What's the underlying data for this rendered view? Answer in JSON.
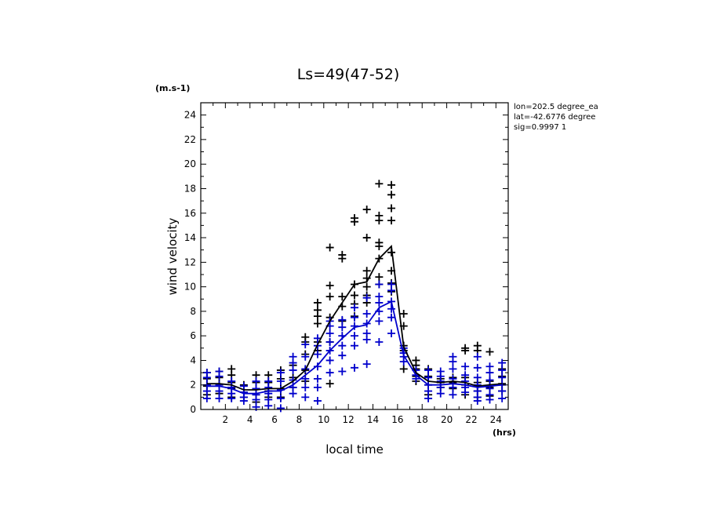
{
  "chart_data": {
    "type": "scatter",
    "title": "Ls=49(47-52)",
    "ylabel": "wind velocity",
    "xlabel": "local time",
    "y_unit": "(m.s-1)",
    "x_unit": "(hrs)",
    "xlim": [
      0,
      25
    ],
    "ylim": [
      0,
      25
    ],
    "x_ticks": [
      2,
      4,
      6,
      8,
      10,
      12,
      14,
      16,
      18,
      20,
      22,
      24
    ],
    "y_ticks": [
      0,
      2,
      4,
      6,
      8,
      10,
      12,
      14,
      16,
      18,
      20,
      22,
      24
    ],
    "grid": false,
    "annotations": [
      "lon=202.5 degree_ea",
      "lat=-42.6776 degree",
      "sig=0.9997 1"
    ],
    "colors": {
      "series_black": "#000000",
      "series_blue": "#0000cc"
    },
    "series": [
      {
        "color": "black",
        "line": [
          [
            0.5,
            2.1
          ],
          [
            1.5,
            2.1
          ],
          [
            2.5,
            2.0
          ],
          [
            3.5,
            1.6
          ],
          [
            4.5,
            1.6
          ],
          [
            5.5,
            1.7
          ],
          [
            6.5,
            1.7
          ],
          [
            7.5,
            2.3
          ],
          [
            8.5,
            3.2
          ],
          [
            9.5,
            5.3
          ],
          [
            10.5,
            7.2
          ],
          [
            11.5,
            8.7
          ],
          [
            12.5,
            10.2
          ],
          [
            13.5,
            10.4
          ],
          [
            14.5,
            12.3
          ],
          [
            15.5,
            13.3
          ],
          [
            16.5,
            5.1
          ],
          [
            17.5,
            3.0
          ],
          [
            18.5,
            2.3
          ],
          [
            19.5,
            2.2
          ],
          [
            20.5,
            2.3
          ],
          [
            21.5,
            2.2
          ],
          [
            22.5,
            1.9
          ],
          [
            23.5,
            2.0
          ],
          [
            24.5,
            2.1
          ]
        ],
        "points": [
          [
            0.5,
            1.2
          ],
          [
            0.5,
            1.9
          ],
          [
            0.5,
            2.5
          ],
          [
            0.5,
            3.0
          ],
          [
            1.5,
            1.3
          ],
          [
            1.5,
            2.0
          ],
          [
            1.5,
            2.6
          ],
          [
            1.5,
            3.1
          ],
          [
            2.5,
            1.0
          ],
          [
            2.5,
            1.7
          ],
          [
            2.5,
            2.2
          ],
          [
            2.5,
            2.8
          ],
          [
            2.5,
            3.3
          ],
          [
            3.5,
            1.0
          ],
          [
            3.5,
            1.4
          ],
          [
            3.5,
            2.0
          ],
          [
            4.5,
            0.6
          ],
          [
            4.5,
            1.2
          ],
          [
            4.5,
            1.7
          ],
          [
            4.5,
            2.2
          ],
          [
            4.5,
            2.8
          ],
          [
            5.5,
            1.0
          ],
          [
            5.5,
            1.5
          ],
          [
            5.5,
            2.2
          ],
          [
            5.5,
            2.8
          ],
          [
            6.5,
            1.0
          ],
          [
            6.5,
            1.7
          ],
          [
            6.5,
            2.5
          ],
          [
            6.5,
            3.2
          ],
          [
            7.5,
            1.8
          ],
          [
            7.5,
            2.6
          ],
          [
            7.5,
            3.6
          ],
          [
            8.5,
            2.3
          ],
          [
            8.5,
            3.2
          ],
          [
            8.5,
            4.5
          ],
          [
            8.5,
            5.5
          ],
          [
            8.5,
            5.9
          ],
          [
            9.5,
            4.8
          ],
          [
            9.5,
            5.5
          ],
          [
            9.5,
            7.0
          ],
          [
            9.5,
            7.6
          ],
          [
            9.5,
            8.1
          ],
          [
            9.5,
            8.7
          ],
          [
            10.5,
            2.1
          ],
          [
            10.5,
            5.5
          ],
          [
            10.5,
            7.5
          ],
          [
            10.5,
            9.2
          ],
          [
            10.5,
            10.1
          ],
          [
            10.5,
            13.2
          ],
          [
            11.5,
            7.2
          ],
          [
            11.5,
            8.4
          ],
          [
            11.5,
            9.2
          ],
          [
            11.5,
            12.3
          ],
          [
            11.5,
            12.6
          ],
          [
            12.5,
            7.6
          ],
          [
            12.5,
            8.6
          ],
          [
            12.5,
            9.3
          ],
          [
            12.5,
            10.2
          ],
          [
            12.5,
            15.3
          ],
          [
            12.5,
            15.6
          ],
          [
            13.5,
            8.7
          ],
          [
            13.5,
            9.3
          ],
          [
            13.5,
            10.0
          ],
          [
            13.5,
            10.7
          ],
          [
            13.5,
            11.3
          ],
          [
            13.5,
            14.0
          ],
          [
            13.5,
            16.3
          ],
          [
            14.5,
            10.2
          ],
          [
            14.5,
            10.8
          ],
          [
            14.5,
            12.3
          ],
          [
            14.5,
            13.3
          ],
          [
            14.5,
            13.6
          ],
          [
            14.5,
            15.4
          ],
          [
            14.5,
            15.8
          ],
          [
            14.5,
            18.4
          ],
          [
            15.5,
            9.6
          ],
          [
            15.5,
            10.3
          ],
          [
            15.5,
            11.3
          ],
          [
            15.5,
            12.8
          ],
          [
            15.5,
            15.4
          ],
          [
            15.5,
            16.4
          ],
          [
            15.5,
            17.5
          ],
          [
            15.5,
            18.3
          ],
          [
            16.5,
            3.3
          ],
          [
            16.5,
            4.8
          ],
          [
            16.5,
            5.2
          ],
          [
            16.5,
            6.8
          ],
          [
            16.5,
            7.8
          ],
          [
            17.5,
            2.3
          ],
          [
            17.5,
            2.7
          ],
          [
            17.5,
            3.3
          ],
          [
            17.5,
            3.6
          ],
          [
            17.5,
            4.0
          ],
          [
            18.5,
            1.2
          ],
          [
            18.5,
            2.0
          ],
          [
            18.5,
            2.7
          ],
          [
            18.5,
            3.3
          ],
          [
            19.5,
            1.8
          ],
          [
            19.5,
            2.2
          ],
          [
            19.5,
            2.5
          ],
          [
            20.5,
            1.7
          ],
          [
            20.5,
            2.2
          ],
          [
            20.5,
            2.6
          ],
          [
            21.5,
            1.2
          ],
          [
            21.5,
            2.0
          ],
          [
            21.5,
            2.6
          ],
          [
            21.5,
            4.8
          ],
          [
            21.5,
            5.0
          ],
          [
            22.5,
            1.0
          ],
          [
            22.5,
            1.5
          ],
          [
            22.5,
            2.2
          ],
          [
            22.5,
            4.8
          ],
          [
            22.5,
            5.2
          ],
          [
            23.5,
            1.1
          ],
          [
            23.5,
            1.8
          ],
          [
            23.5,
            2.3
          ],
          [
            23.5,
            4.7
          ],
          [
            24.5,
            1.5
          ],
          [
            24.5,
            2.1
          ],
          [
            24.5,
            2.7
          ],
          [
            24.5,
            3.3
          ]
        ]
      },
      {
        "color": "blue",
        "line": [
          [
            0.5,
            1.9
          ],
          [
            1.5,
            1.9
          ],
          [
            2.5,
            1.7
          ],
          [
            3.5,
            1.3
          ],
          [
            4.5,
            1.3
          ],
          [
            5.5,
            1.5
          ],
          [
            6.5,
            1.5
          ],
          [
            7.5,
            2.0
          ],
          [
            8.5,
            2.8
          ],
          [
            9.5,
            3.6
          ],
          [
            10.5,
            4.8
          ],
          [
            11.5,
            5.8
          ],
          [
            12.5,
            6.7
          ],
          [
            13.5,
            6.9
          ],
          [
            14.5,
            8.3
          ],
          [
            15.5,
            8.8
          ],
          [
            16.5,
            4.4
          ],
          [
            17.5,
            2.8
          ],
          [
            18.5,
            2.0
          ],
          [
            19.5,
            2.0
          ],
          [
            20.5,
            2.1
          ],
          [
            21.5,
            2.0
          ],
          [
            22.5,
            1.8
          ],
          [
            23.5,
            1.9
          ],
          [
            24.5,
            2.0
          ]
        ],
        "points": [
          [
            0.5,
            0.9
          ],
          [
            0.5,
            1.5
          ],
          [
            0.5,
            2.0
          ],
          [
            0.5,
            2.6
          ],
          [
            0.5,
            3.0
          ],
          [
            1.5,
            0.9
          ],
          [
            1.5,
            1.5
          ],
          [
            1.5,
            2.0
          ],
          [
            1.5,
            2.7
          ],
          [
            1.5,
            3.1
          ],
          [
            2.5,
            0.9
          ],
          [
            2.5,
            1.3
          ],
          [
            2.5,
            1.8
          ],
          [
            2.5,
            2.3
          ],
          [
            3.5,
            0.7
          ],
          [
            3.5,
            1.0
          ],
          [
            3.5,
            1.4
          ],
          [
            3.5,
            1.9
          ],
          [
            4.5,
            0.2
          ],
          [
            4.5,
            0.8
          ],
          [
            4.5,
            1.2
          ],
          [
            4.5,
            1.7
          ],
          [
            4.5,
            2.3
          ],
          [
            5.5,
            0.3
          ],
          [
            5.5,
            0.8
          ],
          [
            5.5,
            1.3
          ],
          [
            5.5,
            1.8
          ],
          [
            5.5,
            2.3
          ],
          [
            6.5,
            0.1
          ],
          [
            6.5,
            0.9
          ],
          [
            6.5,
            1.6
          ],
          [
            6.5,
            2.3
          ],
          [
            6.5,
            3.0
          ],
          [
            7.5,
            1.3
          ],
          [
            7.5,
            1.8
          ],
          [
            7.5,
            2.4
          ],
          [
            7.5,
            3.2
          ],
          [
            7.5,
            3.8
          ],
          [
            7.5,
            4.3
          ],
          [
            8.5,
            1.0
          ],
          [
            8.5,
            1.8
          ],
          [
            8.5,
            2.5
          ],
          [
            8.5,
            3.3
          ],
          [
            8.5,
            4.3
          ],
          [
            8.5,
            5.3
          ],
          [
            9.5,
            0.7
          ],
          [
            9.5,
            1.8
          ],
          [
            9.5,
            2.5
          ],
          [
            9.5,
            3.5
          ],
          [
            9.5,
            4.5
          ],
          [
            9.5,
            5.2
          ],
          [
            9.5,
            5.8
          ],
          [
            10.5,
            3.0
          ],
          [
            10.5,
            4.0
          ],
          [
            10.5,
            4.8
          ],
          [
            10.5,
            5.5
          ],
          [
            10.5,
            6.2
          ],
          [
            10.5,
            6.8
          ],
          [
            10.5,
            7.2
          ],
          [
            11.5,
            3.1
          ],
          [
            11.5,
            4.4
          ],
          [
            11.5,
            5.2
          ],
          [
            11.5,
            6.0
          ],
          [
            11.5,
            6.7
          ],
          [
            11.5,
            7.3
          ],
          [
            12.5,
            3.4
          ],
          [
            12.5,
            5.2
          ],
          [
            12.5,
            6.0
          ],
          [
            12.5,
            6.8
          ],
          [
            12.5,
            7.5
          ],
          [
            12.5,
            8.3
          ],
          [
            13.5,
            3.7
          ],
          [
            13.5,
            5.7
          ],
          [
            13.5,
            6.2
          ],
          [
            13.5,
            7.0
          ],
          [
            13.5,
            7.8
          ],
          [
            13.5,
            9.1
          ],
          [
            14.5,
            5.5
          ],
          [
            14.5,
            7.2
          ],
          [
            14.5,
            8.0
          ],
          [
            14.5,
            8.7
          ],
          [
            14.5,
            9.2
          ],
          [
            14.5,
            10.2
          ],
          [
            15.5,
            6.2
          ],
          [
            15.5,
            7.5
          ],
          [
            15.5,
            8.2
          ],
          [
            15.5,
            8.8
          ],
          [
            15.5,
            9.7
          ],
          [
            15.5,
            10.2
          ],
          [
            16.5,
            3.9
          ],
          [
            16.5,
            4.3
          ],
          [
            16.5,
            4.6
          ],
          [
            16.5,
            5.0
          ],
          [
            17.5,
            2.5
          ],
          [
            17.5,
            2.8
          ],
          [
            17.5,
            3.2
          ],
          [
            18.5,
            0.9
          ],
          [
            18.5,
            1.5
          ],
          [
            18.5,
            2.0
          ],
          [
            18.5,
            2.6
          ],
          [
            18.5,
            3.2
          ],
          [
            19.5,
            1.3
          ],
          [
            19.5,
            1.8
          ],
          [
            19.5,
            2.3
          ],
          [
            19.5,
            2.7
          ],
          [
            19.5,
            3.1
          ],
          [
            20.5,
            1.2
          ],
          [
            20.5,
            1.8
          ],
          [
            20.5,
            2.5
          ],
          [
            20.5,
            3.3
          ],
          [
            20.5,
            3.9
          ],
          [
            20.5,
            4.3
          ],
          [
            21.5,
            1.4
          ],
          [
            21.5,
            1.8
          ],
          [
            21.5,
            2.3
          ],
          [
            21.5,
            2.8
          ],
          [
            21.5,
            3.5
          ],
          [
            22.5,
            0.7
          ],
          [
            22.5,
            1.0
          ],
          [
            22.5,
            1.5
          ],
          [
            22.5,
            2.0
          ],
          [
            22.5,
            2.6
          ],
          [
            22.5,
            3.4
          ],
          [
            22.5,
            4.3
          ],
          [
            23.5,
            0.8
          ],
          [
            23.5,
            1.2
          ],
          [
            23.5,
            1.7
          ],
          [
            23.5,
            2.4
          ],
          [
            23.5,
            3.0
          ],
          [
            23.5,
            3.5
          ],
          [
            24.5,
            0.9
          ],
          [
            24.5,
            1.5
          ],
          [
            24.5,
            2.0
          ],
          [
            24.5,
            2.6
          ],
          [
            24.5,
            3.2
          ],
          [
            24.5,
            3.8
          ]
        ]
      }
    ]
  }
}
